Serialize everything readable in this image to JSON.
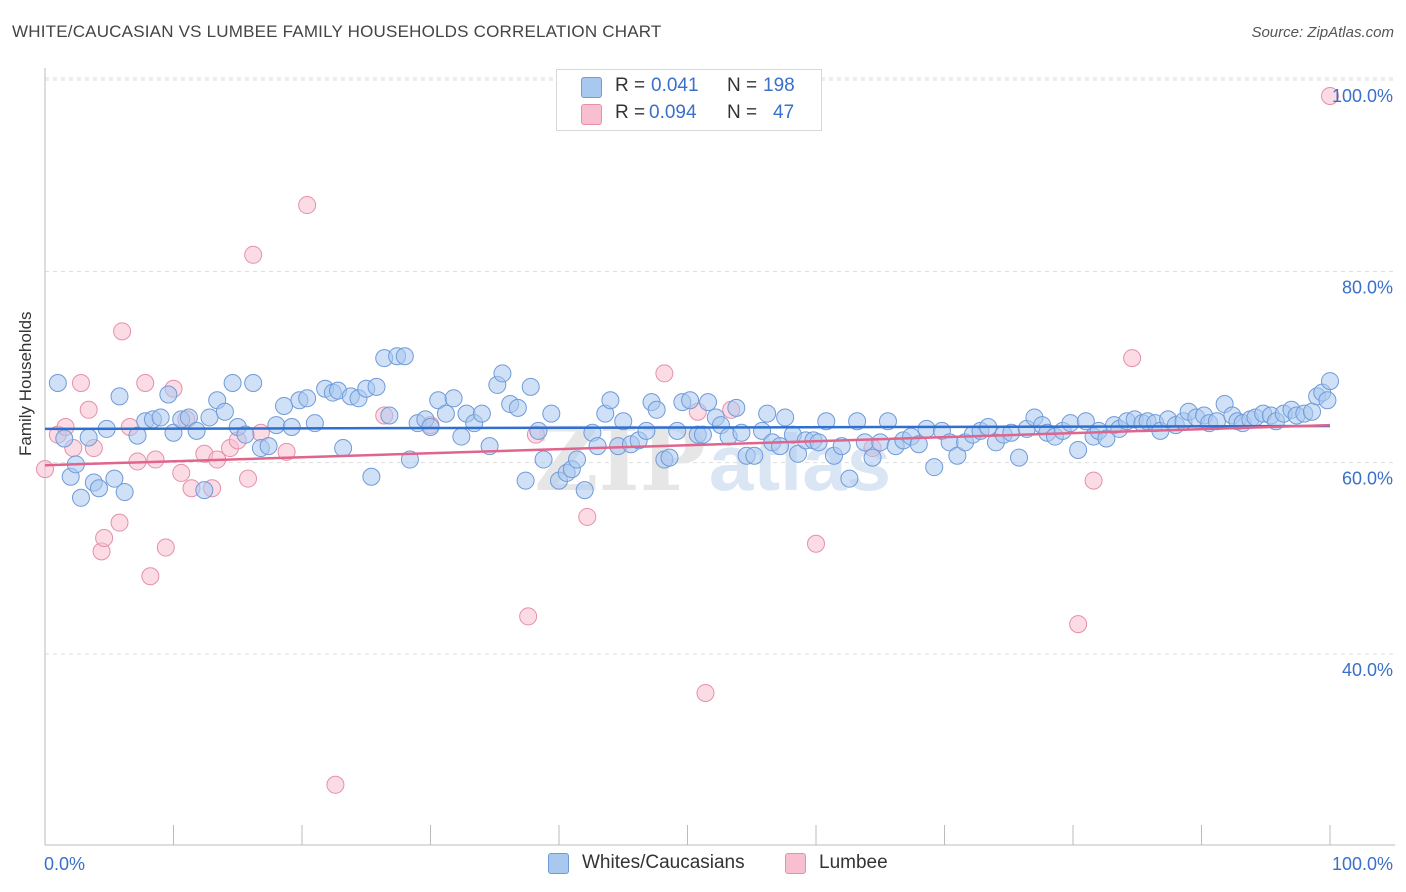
{
  "title": "WHITE/CAUCASIAN VS LUMBEE FAMILY HOUSEHOLDS CORRELATION CHART",
  "source": "Source: ZipAtlas.com",
  "watermark": {
    "zip": "ZIP",
    "atlas": "atlas"
  },
  "legend": {
    "blue": {
      "r_label": "R =",
      "r_value": "0.041",
      "n_label": "N =",
      "n_value": "198"
    },
    "pink": {
      "r_label": "R =",
      "r_value": "0.094",
      "n_label": "N =",
      "n_value": "47"
    }
  },
  "bottom_legend": {
    "blue": "Whites/Caucasians",
    "pink": "Lumbee"
  },
  "colors": {
    "blue_fill": "#a9c8f0",
    "blue_stroke": "#6f9bd8",
    "blue_line": "#2f6fd0",
    "pink_fill": "#f7bfd0",
    "pink_stroke": "#e68fab",
    "pink_line": "#e0648c",
    "grid": "#dddddd",
    "axis_text": "#3a70c8"
  },
  "chart_data": {
    "type": "scatter",
    "title": "WHITE/CAUCASIAN VS LUMBEE FAMILY HOUSEHOLDS CORRELATION CHART",
    "xlabel": "",
    "ylabel": "Family Households",
    "xlim": [
      0,
      100
    ],
    "ylim": [
      21,
      102
    ],
    "x_tick_labels": [
      "0.0%",
      "100.0%"
    ],
    "y_ticks": [
      40,
      60,
      80,
      100
    ],
    "y_tick_labels": [
      "40.0%",
      "60.0%",
      "80.0%",
      "100.0%"
    ],
    "series": [
      {
        "name": "Whites/Caucasians",
        "trend": [
          [
            0,
            65.2
          ],
          [
            100,
            65.5
          ]
        ],
        "points": [
          [
            1,
            70
          ],
          [
            1.5,
            64.2
          ],
          [
            2,
            60.2
          ],
          [
            2.4,
            61.5
          ],
          [
            2.8,
            58
          ],
          [
            3.4,
            64.3
          ],
          [
            3.8,
            59.6
          ],
          [
            4.2,
            59
          ],
          [
            4.8,
            65.2
          ],
          [
            5.4,
            60
          ],
          [
            5.8,
            68.6
          ],
          [
            6.2,
            58.6
          ],
          [
            7.2,
            64.5
          ],
          [
            7.8,
            66
          ],
          [
            8.4,
            66.2
          ],
          [
            9,
            66.4
          ],
          [
            9.6,
            68.8
          ],
          [
            10,
            64.8
          ],
          [
            10.6,
            66.2
          ],
          [
            11.2,
            66.4
          ],
          [
            11.8,
            65
          ],
          [
            12.4,
            58.8
          ],
          [
            12.8,
            66.4
          ],
          [
            13.4,
            68.2
          ],
          [
            14,
            67
          ],
          [
            14.6,
            70
          ],
          [
            15,
            65.4
          ],
          [
            15.6,
            64.6
          ],
          [
            16.2,
            70
          ],
          [
            16.8,
            63.2
          ],
          [
            17.4,
            63.4
          ],
          [
            18,
            65.6
          ],
          [
            18.6,
            67.6
          ],
          [
            19.2,
            65.4
          ],
          [
            19.8,
            68.2
          ],
          [
            20.4,
            68.4
          ],
          [
            21,
            65.8
          ],
          [
            21.8,
            69.4
          ],
          [
            22.4,
            69
          ],
          [
            22.8,
            69.2
          ],
          [
            23.2,
            63.2
          ],
          [
            23.8,
            68.6
          ],
          [
            24.4,
            68.4
          ],
          [
            25,
            69.4
          ],
          [
            25.4,
            60.2
          ],
          [
            25.8,
            69.6
          ],
          [
            26.4,
            72.6
          ],
          [
            26.8,
            66.6
          ],
          [
            27.4,
            72.8
          ],
          [
            28,
            72.8
          ],
          [
            28.4,
            62
          ],
          [
            29,
            65.8
          ],
          [
            29.6,
            66.2
          ],
          [
            30,
            65.4
          ],
          [
            30.6,
            68.2
          ],
          [
            31.2,
            66.8
          ],
          [
            31.8,
            68.4
          ],
          [
            32.4,
            64.4
          ],
          [
            32.8,
            66.8
          ],
          [
            33.4,
            65.8
          ],
          [
            34,
            66.8
          ],
          [
            34.6,
            63.4
          ],
          [
            35.2,
            69.8
          ],
          [
            35.6,
            71
          ],
          [
            36.2,
            67.8
          ],
          [
            36.8,
            67.4
          ],
          [
            37.4,
            59.8
          ],
          [
            37.8,
            69.6
          ],
          [
            38.4,
            65
          ],
          [
            38.8,
            62
          ],
          [
            39.4,
            66.8
          ],
          [
            40,
            59.8
          ],
          [
            40.6,
            60.6
          ],
          [
            41,
            61
          ],
          [
            41.4,
            62
          ],
          [
            42,
            58.8
          ],
          [
            42.6,
            64.8
          ],
          [
            43,
            63.4
          ],
          [
            43.6,
            66.8
          ],
          [
            44,
            68.2
          ],
          [
            44.6,
            63.4
          ],
          [
            45,
            66
          ],
          [
            45.6,
            63.6
          ],
          [
            46.2,
            64
          ],
          [
            46.8,
            65
          ],
          [
            47.2,
            68
          ],
          [
            47.6,
            67.2
          ],
          [
            48.2,
            62
          ],
          [
            48.6,
            62.2
          ],
          [
            49.2,
            65
          ],
          [
            49.6,
            68
          ],
          [
            50.2,
            68.2
          ],
          [
            50.8,
            64.6
          ],
          [
            51.2,
            64.6
          ],
          [
            51.6,
            68
          ],
          [
            52.2,
            66.4
          ],
          [
            52.6,
            65.6
          ],
          [
            53.2,
            64.4
          ],
          [
            53.8,
            67.4
          ],
          [
            54.2,
            64.8
          ],
          [
            54.6,
            62.4
          ],
          [
            55.2,
            62.4
          ],
          [
            55.8,
            65
          ],
          [
            56.2,
            66.8
          ],
          [
            56.6,
            63.8
          ],
          [
            57.2,
            63.4
          ],
          [
            57.6,
            66.4
          ],
          [
            58.2,
            64.6
          ],
          [
            58.6,
            62.6
          ],
          [
            59.2,
            64
          ],
          [
            59.8,
            64
          ],
          [
            60.2,
            63.8
          ],
          [
            60.8,
            66
          ],
          [
            61.4,
            62.4
          ],
          [
            62,
            63.4
          ],
          [
            62.6,
            60
          ],
          [
            63.2,
            66
          ],
          [
            63.8,
            63.8
          ],
          [
            64.4,
            62.2
          ],
          [
            65,
            63.8
          ],
          [
            65.6,
            66
          ],
          [
            66.2,
            63.4
          ],
          [
            66.8,
            64
          ],
          [
            67.4,
            64.4
          ],
          [
            68,
            63.6
          ],
          [
            68.6,
            65.2
          ],
          [
            69.2,
            61.2
          ],
          [
            69.8,
            65
          ],
          [
            70.4,
            63.8
          ],
          [
            71,
            62.4
          ],
          [
            71.6,
            63.8
          ],
          [
            72.2,
            64.6
          ],
          [
            72.8,
            65
          ],
          [
            73.4,
            65.4
          ],
          [
            74,
            63.8
          ],
          [
            74.6,
            64.6
          ],
          [
            75.2,
            64.8
          ],
          [
            75.8,
            62.2
          ],
          [
            76.4,
            65.2
          ],
          [
            77,
            66.4
          ],
          [
            77.6,
            65.6
          ],
          [
            78,
            64.8
          ],
          [
            78.6,
            64.4
          ],
          [
            79.2,
            65
          ],
          [
            79.8,
            65.8
          ],
          [
            80.4,
            63
          ],
          [
            81,
            66
          ],
          [
            81.6,
            64.4
          ],
          [
            82,
            65
          ],
          [
            82.6,
            64.2
          ],
          [
            83.2,
            65.6
          ],
          [
            83.6,
            65.2
          ],
          [
            84.2,
            66
          ],
          [
            84.8,
            66.2
          ],
          [
            85.4,
            65.8
          ],
          [
            85.8,
            66
          ],
          [
            86.4,
            65.8
          ],
          [
            86.8,
            65
          ],
          [
            87.4,
            66.2
          ],
          [
            88,
            65.6
          ],
          [
            88.6,
            66
          ],
          [
            89,
            67
          ],
          [
            89.6,
            66.4
          ],
          [
            90.2,
            66.6
          ],
          [
            90.6,
            65.8
          ],
          [
            91.2,
            66
          ],
          [
            91.8,
            67.8
          ],
          [
            92.4,
            66.6
          ],
          [
            92.8,
            66
          ],
          [
            93.2,
            65.8
          ],
          [
            93.8,
            66.2
          ],
          [
            94.2,
            66.4
          ],
          [
            94.8,
            66.8
          ],
          [
            95.4,
            66.6
          ],
          [
            95.8,
            66
          ],
          [
            96.4,
            66.8
          ],
          [
            97,
            67.2
          ],
          [
            97.4,
            66.6
          ],
          [
            98,
            66.8
          ],
          [
            98.6,
            67
          ],
          [
            99,
            68.6
          ],
          [
            99.4,
            69
          ],
          [
            99.8,
            68.2
          ],
          [
            100,
            70.2
          ]
        ]
      },
      {
        "name": "Lumbee",
        "trend": [
          [
            0,
            61.4
          ],
          [
            100,
            65.6
          ]
        ],
        "points": [
          [
            0,
            61
          ],
          [
            1,
            64.6
          ],
          [
            1.6,
            65.4
          ],
          [
            2.2,
            63.2
          ],
          [
            2.8,
            70
          ],
          [
            3.4,
            67.2
          ],
          [
            3.8,
            63.2
          ],
          [
            4.4,
            52.4
          ],
          [
            4.6,
            53.8
          ],
          [
            5.8,
            55.4
          ],
          [
            6,
            75.4
          ],
          [
            6.6,
            65.4
          ],
          [
            7.2,
            61.8
          ],
          [
            7.8,
            70
          ],
          [
            8.2,
            49.8
          ],
          [
            8.6,
            62
          ],
          [
            9.4,
            52.8
          ],
          [
            10,
            69.4
          ],
          [
            10.6,
            60.6
          ],
          [
            11,
            66.2
          ],
          [
            11.4,
            59
          ],
          [
            12.4,
            62.6
          ],
          [
            13,
            59
          ],
          [
            13.4,
            62
          ],
          [
            14.4,
            63.2
          ],
          [
            15,
            64
          ],
          [
            15.8,
            60
          ],
          [
            16.2,
            83.4
          ],
          [
            16.8,
            64.8
          ],
          [
            18.8,
            62.8
          ],
          [
            20.4,
            88.6
          ],
          [
            22.6,
            28
          ],
          [
            26.4,
            66.6
          ],
          [
            30,
            65.6
          ],
          [
            37.6,
            45.6
          ],
          [
            38.2,
            64.6
          ],
          [
            42.2,
            56
          ],
          [
            48.2,
            71
          ],
          [
            50.8,
            67
          ],
          [
            51.4,
            37.6
          ],
          [
            53.4,
            67.2
          ],
          [
            60,
            53.2
          ],
          [
            64.4,
            63.2
          ],
          [
            80.4,
            44.8
          ],
          [
            81.6,
            59.8
          ],
          [
            84.6,
            72.6
          ],
          [
            100,
            100
          ]
        ]
      }
    ]
  }
}
